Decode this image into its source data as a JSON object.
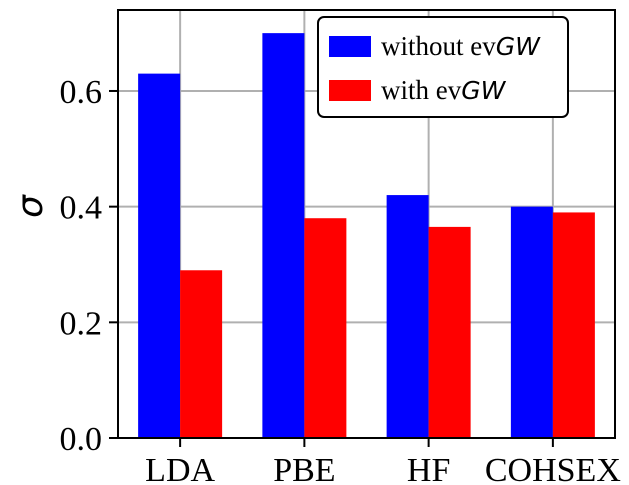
{
  "chart_data": {
    "type": "bar",
    "title": "",
    "xlabel": "",
    "ylabel": "σ",
    "categories": [
      "LDA",
      "PBE",
      "HF",
      "COHSEX"
    ],
    "ylim": [
      0,
      0.74
    ],
    "yticks": [
      "0.0",
      "0.2",
      "0.4",
      "0.6"
    ],
    "grid": true,
    "legend_position": "top-right",
    "series": [
      {
        "name_prefix": "without ev",
        "name_suffix": "GW",
        "color": "#0000ff",
        "values": [
          0.63,
          0.7,
          0.42,
          0.4
        ]
      },
      {
        "name_prefix": "with ev",
        "name_suffix": "GW",
        "color": "#ff0000",
        "values": [
          0.29,
          0.38,
          0.365,
          0.39
        ]
      }
    ]
  }
}
